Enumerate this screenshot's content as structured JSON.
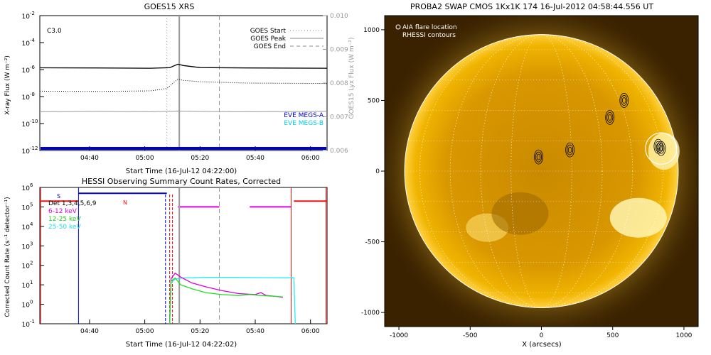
{
  "colors": {
    "goes_long": "#000000",
    "goes_short": "#000000",
    "goes_lya": "#999999",
    "eve_a": "#0000cc",
    "eve_b": "#00e5ee",
    "bar_red": "#ee1111",
    "det": "#0000dd",
    "magenta": "#dd00dd",
    "green": "#22dd22",
    "cyan": "#22eeee",
    "sun": "#f5b000",
    "sun_bg": "#3a2200"
  },
  "chart_data": [
    {
      "type": "line",
      "title": "GOES15 XRS",
      "xlabel": "Start Time (16-Jul-12 04:22:00)",
      "ylabel": "X-ray Flux (W m⁻²)",
      "ylabel_right": "GOES15 Lyx Flux (W m⁻²)",
      "x_ticks": [
        "04:40",
        "05:00",
        "05:20",
        "05:40",
        "06:00"
      ],
      "x_tick_minutes": [
        18,
        38,
        58,
        78,
        98
      ],
      "xlim_minutes": [
        0,
        104
      ],
      "ylim_log": [
        -12,
        -2
      ],
      "y_tick_exp": [
        -12,
        -10,
        -8,
        -6,
        -4,
        -2
      ],
      "y_ticks": [
        "10",
        "10",
        "10",
        "10",
        "10",
        "10"
      ],
      "y_tick_sup": [
        "-12",
        "-10",
        "-8",
        "-6",
        "-4",
        "-2"
      ],
      "right_ylim": [
        0.006,
        0.01
      ],
      "right_ticks": [
        "0.006",
        "0.007",
        "0.008",
        "0.009",
        "0.010"
      ],
      "right_tick_values": [
        0.006,
        0.007,
        0.008,
        0.009,
        0.01
      ],
      "class_label": "C3.0",
      "legend": [
        {
          "label": "GOES Start",
          "style": "dotted"
        },
        {
          "label": "GOES Peak",
          "style": "solid"
        },
        {
          "label": "GOES End",
          "style": "dashed"
        }
      ],
      "eve_legend": [
        "EVE MEGS-A",
        "EVE MEGS-B"
      ],
      "event_lines_minutes": {
        "start": 46,
        "peak": 50.5,
        "end": 65
      },
      "series": [
        {
          "name": "",
          "log_values": [
            [
              0,
              -5.87
            ],
            [
              20,
              -5.88
            ],
            [
              40,
              -5.9
            ],
            [
              47,
              -5.86
            ],
            [
              50,
              -5.6
            ],
            [
              52,
              -5.7
            ],
            [
              58,
              -5.85
            ],
            [
              75,
              -5.88
            ],
            [
              104,
              -5.9
            ]
          ]
        },
        {
          "name": "",
          "log_values": [
            [
              0,
              -7.6
            ],
            [
              20,
              -7.62
            ],
            [
              40,
              -7.58
            ],
            [
              46,
              -7.4
            ],
            [
              50,
              -6.7
            ],
            [
              52,
              -6.8
            ],
            [
              58,
              -6.9
            ],
            [
              75,
              -7.0
            ],
            [
              104,
              -7.03
            ]
          ]
        },
        {
          "name": "",
          "lya_values": [
            [
              0,
              0.00715
            ],
            [
              20,
              0.00716
            ],
            [
              40,
              0.00715
            ],
            [
              50,
              0.00717
            ],
            [
              70,
              0.00715
            ],
            [
              104,
              0.00716
            ]
          ]
        }
      ]
    },
    {
      "type": "line",
      "title": "HESSI Observing Summary Count Rates, Corrected",
      "xlabel": "Start Time (16-Jul-12 04:22:02)",
      "ylabel": "Corrected Count Rate (s⁻¹ detector⁻¹)",
      "x_ticks": [
        "04:40",
        "05:00",
        "05:20",
        "05:40",
        "06:00"
      ],
      "x_tick_minutes": [
        18,
        38,
        58,
        78,
        98
      ],
      "xlim_minutes": [
        0,
        104
      ],
      "ylim_log": [
        -1,
        6
      ],
      "y_tick_exp": [
        -1,
        0,
        1,
        2,
        3,
        4,
        5,
        6
      ],
      "y_ticks": [
        "10",
        "10",
        "10",
        "10",
        "10",
        "10",
        "10",
        "10"
      ],
      "y_tick_sup": [
        "-1",
        "0",
        "1",
        "2",
        "3",
        "4",
        "5",
        "6"
      ],
      "legend": [
        {
          "label": "Det 1,3,4,5,6,9",
          "color_key": "goes_long"
        },
        {
          "label": "6-12 keV",
          "color_key": "magenta"
        },
        {
          "label": "12-25 keV",
          "color_key": "green"
        },
        {
          "label": "25-50 keV",
          "color_key": "cyan"
        }
      ],
      "flag_labels": [
        "S",
        "N"
      ],
      "event_lines_minutes": {
        "peak": 50.5,
        "end": 65
      },
      "series": [
        {
          "name": "6-12 keV",
          "log_values": [
            [
              47,
              -1
            ],
            [
              47.5,
              1.3
            ],
            [
              49,
              1.6
            ],
            [
              51,
              1.4
            ],
            [
              55,
              1.1
            ],
            [
              60,
              0.9
            ],
            [
              66,
              0.7
            ],
            [
              72,
              0.55
            ],
            [
              78,
              0.5
            ],
            [
              80,
              0.6
            ],
            [
              82,
              0.45
            ],
            [
              86,
              0.4
            ],
            [
              88,
              0.35
            ]
          ]
        },
        {
          "name": "12-25 keV",
          "log_values": [
            [
              47,
              -1
            ],
            [
              47.5,
              1.2
            ],
            [
              49,
              1.35
            ],
            [
              51,
              1.0
            ],
            [
              55,
              0.8
            ],
            [
              60,
              0.6
            ],
            [
              66,
              0.5
            ],
            [
              72,
              0.45
            ],
            [
              76,
              0.5
            ],
            [
              80,
              0.45
            ],
            [
              86,
              0.4
            ],
            [
              88,
              0.38
            ]
          ]
        },
        {
          "name": "25-50 keV",
          "log_values": [
            [
              47,
              -1
            ],
            [
              47.5,
              1.1
            ],
            [
              49,
              1.3
            ],
            [
              52,
              1.35
            ],
            [
              60,
              1.38
            ],
            [
              70,
              1.38
            ],
            [
              80,
              1.37
            ],
            [
              92,
              1.36
            ],
            [
              92.5,
              -1
            ]
          ]
        }
      ]
    },
    {
      "type": "heatmap",
      "title": "PROBA2 SWAP CMOS 1Kx1K 174 16-Jul-2012 04:58:44.556 UT",
      "xlabel": "X (arcsecs)",
      "ylabel": "",
      "xlim": [
        -1100,
        1100
      ],
      "ylim": [
        -1100,
        1100
      ],
      "x_ticks": [
        "-1000",
        "-500",
        "0",
        "500",
        "1000"
      ],
      "x_tick_values": [
        -1000,
        -500,
        0,
        500,
        1000
      ],
      "y_ticks": [
        "-1000",
        "-500",
        "0",
        "500",
        "1000"
      ],
      "y_tick_values": [
        -1000,
        -500,
        0,
        500,
        1000
      ],
      "legend": [
        {
          "label": "AIA flare location"
        },
        {
          "label": "RHESSI contours"
        }
      ],
      "flare_location": {
        "x": 840,
        "y": 160,
        "radius": 110
      },
      "solar_radius": 960
    }
  ]
}
